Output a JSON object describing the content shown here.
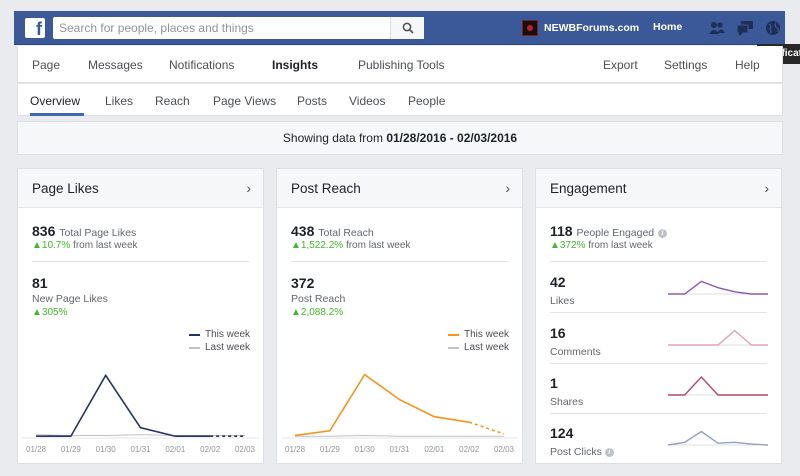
{
  "topbar": {
    "search_placeholder": "Search for people, places and things",
    "page_name": "NEWBForums.com",
    "home_label": "Home",
    "tooltip": "Notifications",
    "brand_color": "#3b5998"
  },
  "nav": {
    "items": [
      "Page",
      "Messages",
      "Notifications",
      "Insights",
      "Publishing Tools",
      "Export",
      "Settings",
      "Help"
    ],
    "active": "Insights"
  },
  "subnav": {
    "items": [
      "Overview",
      "Likes",
      "Reach",
      "Page Views",
      "Posts",
      "Videos",
      "People"
    ],
    "active": "Overview"
  },
  "banner": {
    "prefix": "Showing data from",
    "range": "01/28/2016 - 02/03/2016"
  },
  "page_likes": {
    "title": "Page Likes",
    "total": "836",
    "total_label": "Total Page Likes",
    "total_change": "10.7%",
    "total_change_suffix": "from last week",
    "new": "81",
    "new_label": "New Page Likes",
    "new_change": "305%",
    "legend_this": "This week",
    "legend_last": "Last week"
  },
  "post_reach": {
    "title": "Post Reach",
    "total": "438",
    "total_label": "Total Reach",
    "total_change": "1,522.2%",
    "total_change_suffix": "from last week",
    "posts": "372",
    "posts_label": "Post Reach",
    "posts_change": "2,088.2%",
    "legend_this": "This week",
    "legend_last": "Last week"
  },
  "engagement": {
    "title": "Engagement",
    "total": "118",
    "total_label": "People Engaged",
    "total_change": "372%",
    "total_change_suffix": "from last week",
    "rows": [
      {
        "value": "42",
        "label": "Likes"
      },
      {
        "value": "16",
        "label": "Comments"
      },
      {
        "value": "1",
        "label": "Shares"
      },
      {
        "value": "124",
        "label": "Post Clicks"
      }
    ]
  },
  "chart_data": [
    {
      "type": "line",
      "x": [
        "01/28",
        "01/29",
        "01/30",
        "01/31",
        "02/01",
        "02/02",
        "02/03"
      ],
      "series": [
        {
          "name": "This week",
          "color": "#23345c",
          "values": [
            1,
            1,
            79,
            12,
            1,
            1,
            1
          ]
        },
        {
          "name": "Last week",
          "color": "#bec3c9",
          "values": [
            3,
            2,
            2,
            3,
            2,
            2,
            2
          ]
        }
      ],
      "ylim": [
        0,
        100
      ],
      "grid": false,
      "legend": "top-right"
    },
    {
      "type": "line",
      "x": [
        "01/28",
        "01/29",
        "01/30",
        "01/31",
        "02/01",
        "02/02",
        "02/03"
      ],
      "series": [
        {
          "name": "This week",
          "color": "#f7931e",
          "values": [
            2,
            8,
            80,
            48,
            26,
            19,
            4
          ]
        },
        {
          "name": "Last week",
          "color": "#bec3c9",
          "values": [
            1,
            1,
            2,
            1,
            1,
            1,
            1
          ]
        }
      ],
      "ylim": [
        0,
        100
      ],
      "grid": false,
      "legend": "top-right"
    }
  ],
  "sparklines": [
    {
      "color": "#8c5bb1",
      "values": [
        0,
        0,
        70,
        35,
        12,
        0,
        0
      ]
    },
    {
      "color": "#e2a3b8",
      "values": [
        0,
        0,
        0,
        0,
        80,
        0,
        0
      ]
    },
    {
      "color": "#b24a67",
      "values": [
        0,
        0,
        100,
        0,
        0,
        0,
        0
      ]
    },
    {
      "color": "#8fa1c7",
      "values": [
        0,
        15,
        75,
        10,
        15,
        5,
        0
      ]
    }
  ]
}
